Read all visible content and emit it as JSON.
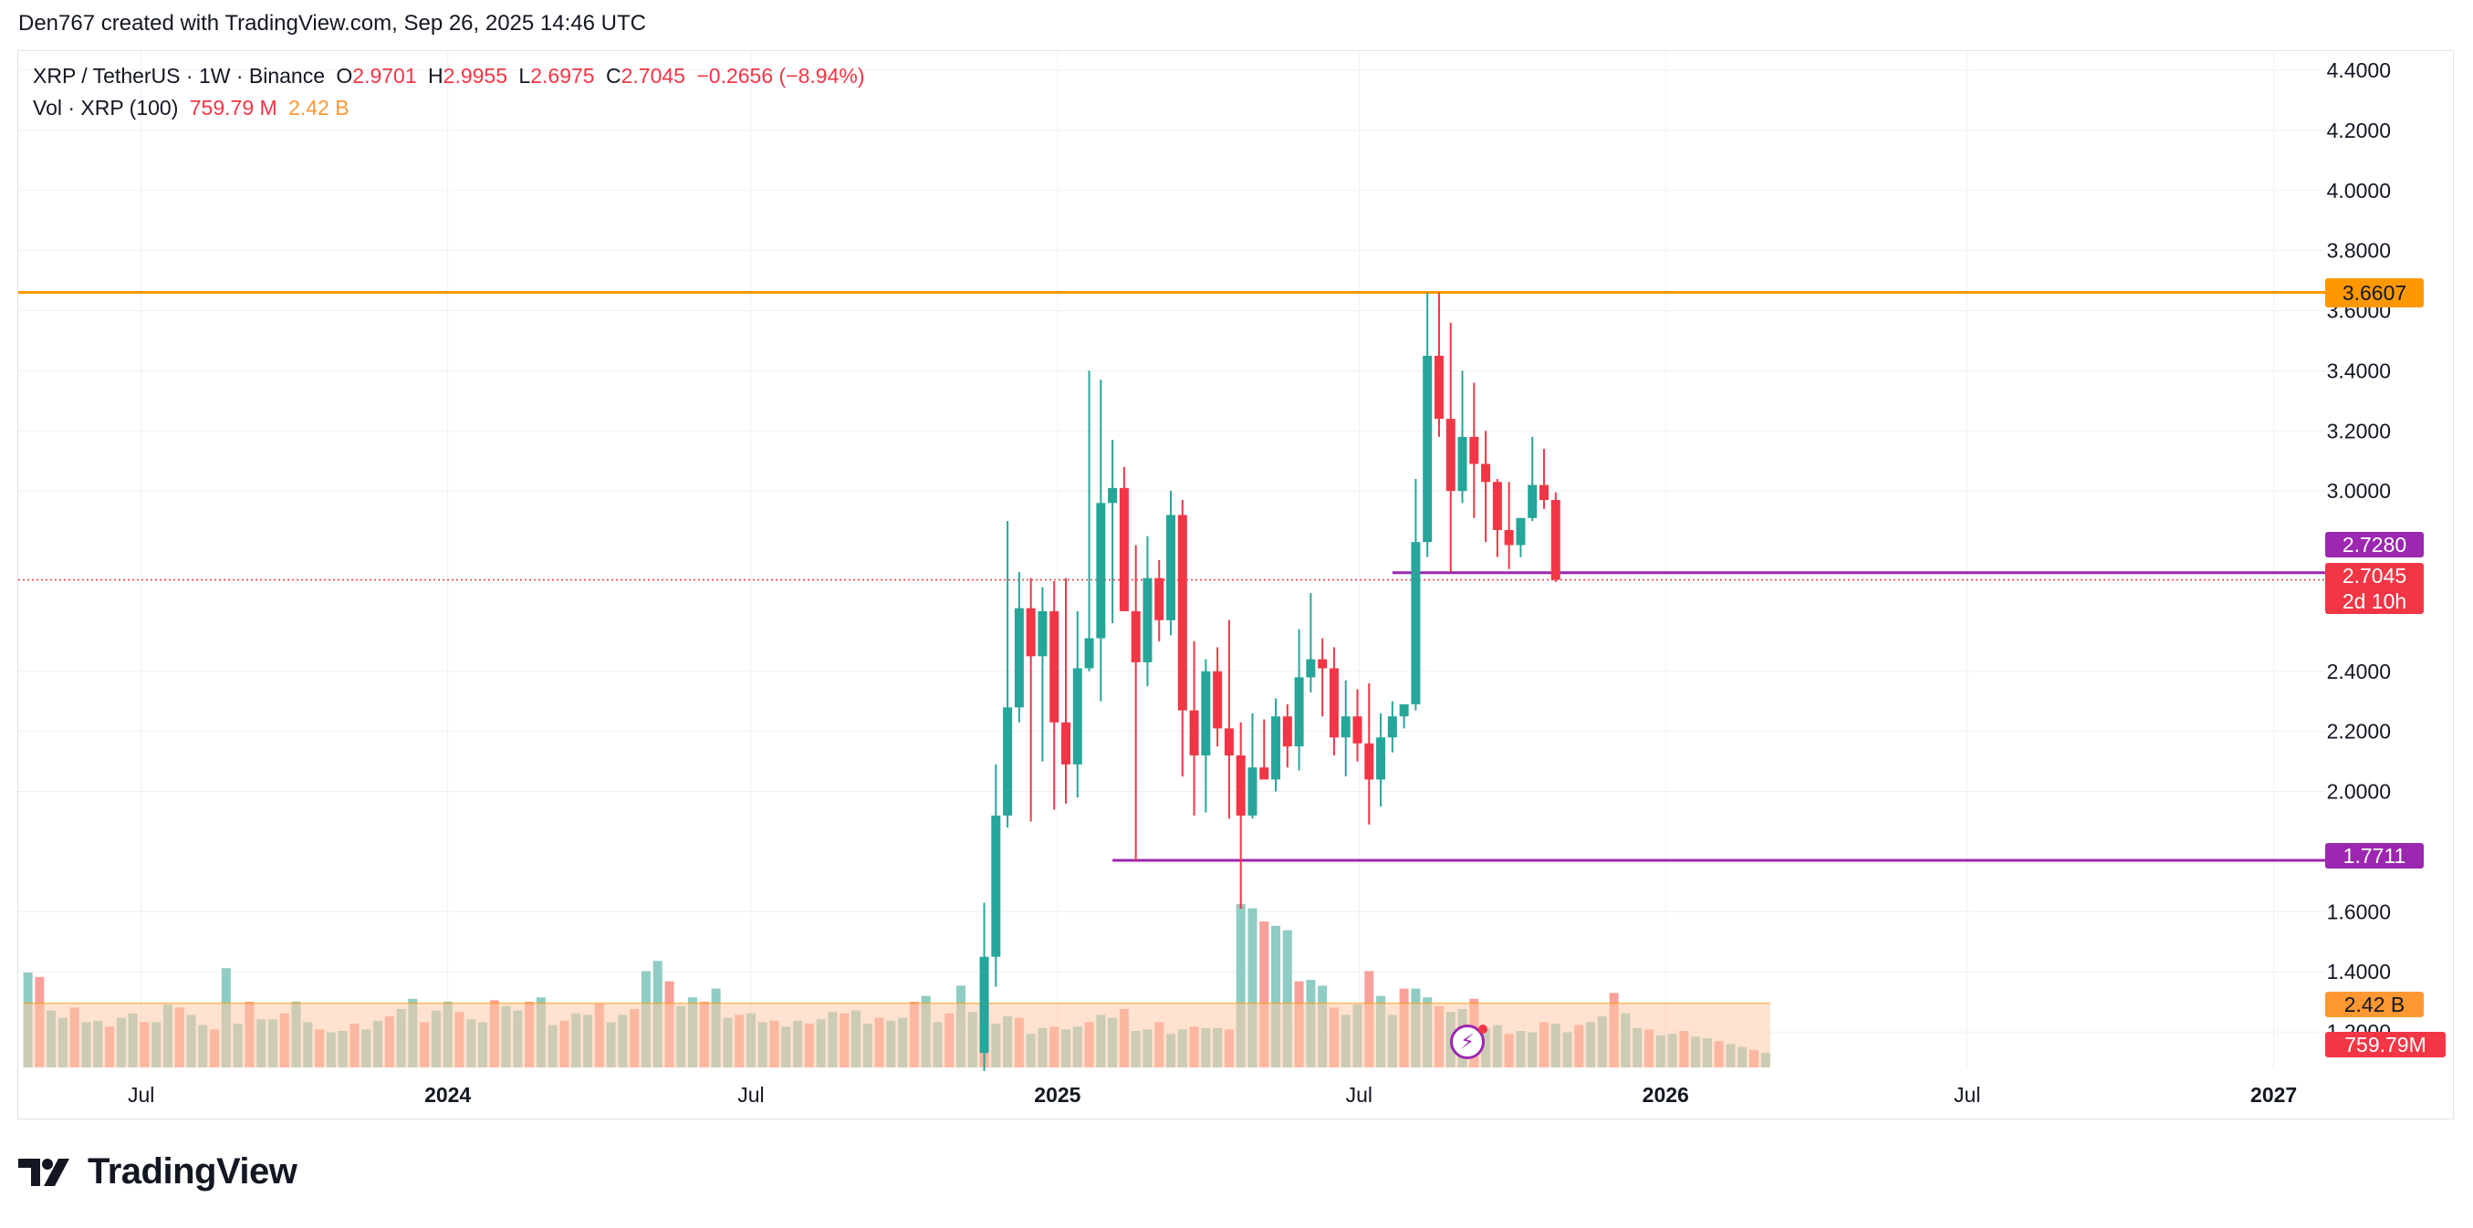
{
  "caption": "Den767 created with TradingView.com, Sep 26, 2025 14:46 UTC",
  "legend": {
    "symbol": "XRP / TetherUS · 1W · Binance",
    "o_label": "O",
    "o": "2.9701",
    "h_label": "H",
    "h": "2.9955",
    "l_label": "L",
    "l": "2.6975",
    "c_label": "C",
    "c": "2.7045",
    "change": "−0.2656 (−8.94%)",
    "vol_label": "Vol · XRP (100)",
    "vol": "759.79 M",
    "vol_ma": "2.42 B"
  },
  "badges": {
    "resistance": "3.6607",
    "support_high": "2.7280",
    "last_price": "2.7045",
    "countdown": "2d 10h",
    "support_low": "1.7711",
    "vol_ma": "2.42 B",
    "vol": "759.79M"
  },
  "brand": {
    "name": "TradingView"
  },
  "colors": {
    "up": "#26a69a",
    "down": "#f23645",
    "vol_up": "#8fccc3",
    "vol_down": "#f9a09a",
    "vol_ma": "#ffcba8",
    "resistance": "#ff9800",
    "support": "#9c27b0",
    "grid": "#eef0f3"
  },
  "chart_data": {
    "type": "candlestick",
    "title": "XRP / TetherUS · 1W · Binance",
    "y_axis": {
      "ticks": [
        "4.4000",
        "4.2000",
        "4.0000",
        "3.8000",
        "3.6000",
        "3.4000",
        "3.2000",
        "3.0000",
        "2.4000",
        "2.2000",
        "2.0000",
        "1.6000",
        "1.4000",
        "1.2000"
      ],
      "range": [
        1.14,
        4.42
      ],
      "scale": "linear"
    },
    "x_axis": {
      "ticks": [
        "Jul",
        "2024",
        "Jul",
        "2025",
        "Jul",
        "2026",
        "Jul",
        "2027"
      ]
    },
    "grid": true,
    "horizontal_levels": [
      {
        "value": 3.6607,
        "color": "#ff9800",
        "name": "resistance",
        "from": "start"
      },
      {
        "value": 2.728,
        "color": "#9c27b0",
        "name": "support_high",
        "from": "2025-07-21"
      },
      {
        "value": 1.7711,
        "color": "#9c27b0",
        "name": "support_low",
        "from": "2025-02-03"
      }
    ],
    "last_price": 2.7045,
    "candles": [
      {
        "w": "2024-11-18",
        "o": 1.13,
        "h": 1.63,
        "l": 1.07,
        "c": 1.45
      },
      {
        "w": "2024-11-25",
        "o": 1.45,
        "h": 2.09,
        "l": 1.35,
        "c": 1.92
      },
      {
        "w": "2024-12-02",
        "o": 1.92,
        "h": 2.9,
        "l": 1.88,
        "c": 2.28
      },
      {
        "w": "2024-12-09",
        "o": 2.28,
        "h": 2.73,
        "l": 2.23,
        "c": 2.61
      },
      {
        "w": "2024-12-16",
        "o": 2.61,
        "h": 2.71,
        "l": 1.9,
        "c": 2.45
      },
      {
        "w": "2024-12-23",
        "o": 2.45,
        "h": 2.68,
        "l": 2.1,
        "c": 2.6
      },
      {
        "w": "2024-12-30",
        "o": 2.6,
        "h": 2.7,
        "l": 1.94,
        "c": 2.23
      },
      {
        "w": "2025-01-06",
        "o": 2.23,
        "h": 2.71,
        "l": 1.96,
        "c": 2.09
      },
      {
        "w": "2025-01-13",
        "o": 2.09,
        "h": 2.6,
        "l": 1.98,
        "c": 2.41
      },
      {
        "w": "2025-01-20",
        "o": 2.41,
        "h": 3.4,
        "l": 2.4,
        "c": 2.51
      },
      {
        "w": "2025-01-27",
        "o": 2.51,
        "h": 3.37,
        "l": 2.3,
        "c": 2.96
      },
      {
        "w": "2025-02-03",
        "o": 2.96,
        "h": 3.17,
        "l": 2.56,
        "c": 3.01
      },
      {
        "w": "2025-02-10",
        "o": 3.01,
        "h": 3.08,
        "l": 2.62,
        "c": 2.6
      },
      {
        "w": "2025-02-17",
        "o": 2.6,
        "h": 2.82,
        "l": 1.77,
        "c": 2.43
      },
      {
        "w": "2025-02-24",
        "o": 2.43,
        "h": 2.85,
        "l": 2.35,
        "c": 2.71
      },
      {
        "w": "2025-03-03",
        "o": 2.71,
        "h": 2.77,
        "l": 2.5,
        "c": 2.57
      },
      {
        "w": "2025-03-10",
        "o": 2.57,
        "h": 3.0,
        "l": 2.52,
        "c": 2.92
      },
      {
        "w": "2025-03-17",
        "o": 2.92,
        "h": 2.97,
        "l": 2.05,
        "c": 2.27
      },
      {
        "w": "2025-03-24",
        "o": 2.27,
        "h": 2.5,
        "l": 1.92,
        "c": 2.12
      },
      {
        "w": "2025-03-31",
        "o": 2.12,
        "h": 2.44,
        "l": 1.93,
        "c": 2.4
      },
      {
        "w": "2025-04-07",
        "o": 2.4,
        "h": 2.48,
        "l": 2.15,
        "c": 2.21
      },
      {
        "w": "2025-04-14",
        "o": 2.21,
        "h": 2.57,
        "l": 1.91,
        "c": 2.12
      },
      {
        "w": "2025-04-21",
        "o": 2.12,
        "h": 2.23,
        "l": 1.61,
        "c": 1.92
      },
      {
        "w": "2025-04-28",
        "o": 1.92,
        "h": 2.26,
        "l": 1.91,
        "c": 2.08
      },
      {
        "w": "2025-05-05",
        "o": 2.08,
        "h": 2.24,
        "l": 2.05,
        "c": 2.04
      },
      {
        "w": "2025-05-12",
        "o": 2.04,
        "h": 2.31,
        "l": 2.0,
        "c": 2.25
      },
      {
        "w": "2025-05-19",
        "o": 2.25,
        "h": 2.29,
        "l": 2.08,
        "c": 2.15
      },
      {
        "w": "2025-05-26",
        "o": 2.15,
        "h": 2.54,
        "l": 2.07,
        "c": 2.38
      },
      {
        "w": "2025-06-02",
        "o": 2.38,
        "h": 2.66,
        "l": 2.33,
        "c": 2.44
      },
      {
        "w": "2025-06-09",
        "o": 2.44,
        "h": 2.51,
        "l": 2.25,
        "c": 2.41
      },
      {
        "w": "2025-06-16",
        "o": 2.41,
        "h": 2.48,
        "l": 2.12,
        "c": 2.18
      },
      {
        "w": "2025-06-23",
        "o": 2.18,
        "h": 2.37,
        "l": 2.05,
        "c": 2.25
      },
      {
        "w": "2025-06-30",
        "o": 2.25,
        "h": 2.34,
        "l": 2.1,
        "c": 2.16
      },
      {
        "w": "2025-07-07",
        "o": 2.16,
        "h": 2.36,
        "l": 1.89,
        "c": 2.04
      },
      {
        "w": "2025-07-14",
        "o": 2.04,
        "h": 2.26,
        "l": 1.95,
        "c": 2.18
      },
      {
        "w": "2025-07-21",
        "o": 2.18,
        "h": 2.3,
        "l": 2.13,
        "c": 2.25
      },
      {
        "w": "2025-07-28",
        "o": 2.25,
        "h": 2.29,
        "l": 2.21,
        "c": 2.29
      },
      {
        "w": "2025-08-04",
        "o": 2.29,
        "h": 3.04,
        "l": 2.27,
        "c": 2.83
      },
      {
        "w": "2025-08-11",
        "o": 2.83,
        "h": 3.66,
        "l": 2.78,
        "c": 3.45
      },
      {
        "w": "2025-08-18",
        "o": 3.45,
        "h": 3.66,
        "l": 3.18,
        "c": 3.24
      },
      {
        "w": "2025-08-25",
        "o": 3.24,
        "h": 3.56,
        "l": 2.73,
        "c": 3.0
      },
      {
        "w": "2025-09-01",
        "o": 3.0,
        "h": 3.4,
        "l": 2.96,
        "c": 3.18
      },
      {
        "w": "2025-09-08",
        "o": 3.18,
        "h": 3.36,
        "l": 2.91,
        "c": 3.09
      },
      {
        "w": "2025-09-15",
        "o": 3.09,
        "h": 3.2,
        "l": 2.83,
        "c": 3.03
      },
      {
        "w": "2025-09-22",
        "o": 3.03,
        "h": 3.04,
        "l": 2.78,
        "c": 2.87
      },
      {
        "w": "2025-09-29",
        "o": 2.87,
        "h": 3.03,
        "l": 2.74,
        "c": 2.82
      },
      {
        "w": "2025-10-06",
        "o": 2.82,
        "h": 2.91,
        "l": 2.78,
        "c": 2.91
      },
      {
        "w": "2025-10-13",
        "o": 2.91,
        "h": 3.18,
        "l": 2.9,
        "c": 3.02
      },
      {
        "w": "2025-10-20",
        "o": 3.02,
        "h": 3.14,
        "l": 2.94,
        "c": 2.97
      },
      {
        "w": "2025-10-27",
        "o": 2.97,
        "h": 2.9955,
        "l": 2.6975,
        "c": 2.7045
      }
    ],
    "volume": {
      "series_name": "Vol · XRP (100)",
      "last": "759.79M",
      "ma_last": "2.42B",
      "relative_bars": [
        0.65,
        0.62,
        0.39,
        0.34,
        0.41,
        0.31,
        0.32,
        0.28,
        0.34,
        0.37,
        0.31,
        0.31,
        0.43,
        0.41,
        0.36,
        0.29,
        0.26,
        0.68,
        0.3,
        0.45,
        0.33,
        0.33,
        0.37,
        0.45,
        0.31,
        0.26,
        0.24,
        0.25,
        0.3,
        0.26,
        0.32,
        0.35,
        0.4,
        0.47,
        0.31,
        0.39,
        0.45,
        0.38,
        0.33,
        0.31,
        0.46,
        0.42,
        0.39,
        0.45,
        0.48,
        0.29,
        0.32,
        0.37,
        0.36,
        0.44,
        0.31,
        0.36,
        0.4,
        0.66,
        0.73,
        0.59,
        0.42,
        0.48,
        0.45,
        0.54,
        0.34,
        0.36,
        0.37,
        0.31,
        0.32,
        0.28,
        0.32,
        0.3,
        0.33,
        0.38,
        0.37,
        0.39,
        0.3,
        0.34,
        0.32,
        0.34,
        0.45,
        0.49,
        0.31,
        0.37,
        0.56,
        0.38,
        0.44,
        0.3,
        0.35,
        0.34,
        0.23,
        0.27,
        0.28,
        0.26,
        0.28,
        0.31,
        0.36,
        0.34,
        0.4,
        0.25,
        0.26,
        0.31,
        0.23,
        0.26,
        0.28,
        0.27,
        0.27,
        0.26,
        1.12,
        1.09,
        1.0,
        0.97,
        0.94,
        0.59,
        0.6,
        0.56,
        0.41,
        0.36,
        0.43,
        0.66,
        0.49,
        0.36,
        0.54,
        0.54,
        0.48,
        0.42,
        0.38,
        0.4,
        0.47,
        0.27,
        0.29,
        0.23,
        0.25,
        0.24,
        0.31,
        0.3,
        0.24,
        0.29,
        0.31,
        0.35,
        0.51,
        0.37,
        0.27,
        0.26,
        0.22,
        0.23,
        0.25,
        0.21,
        0.2,
        0.18,
        0.16,
        0.14,
        0.12,
        0.1
      ],
      "relative_ma": 0.44
    }
  }
}
